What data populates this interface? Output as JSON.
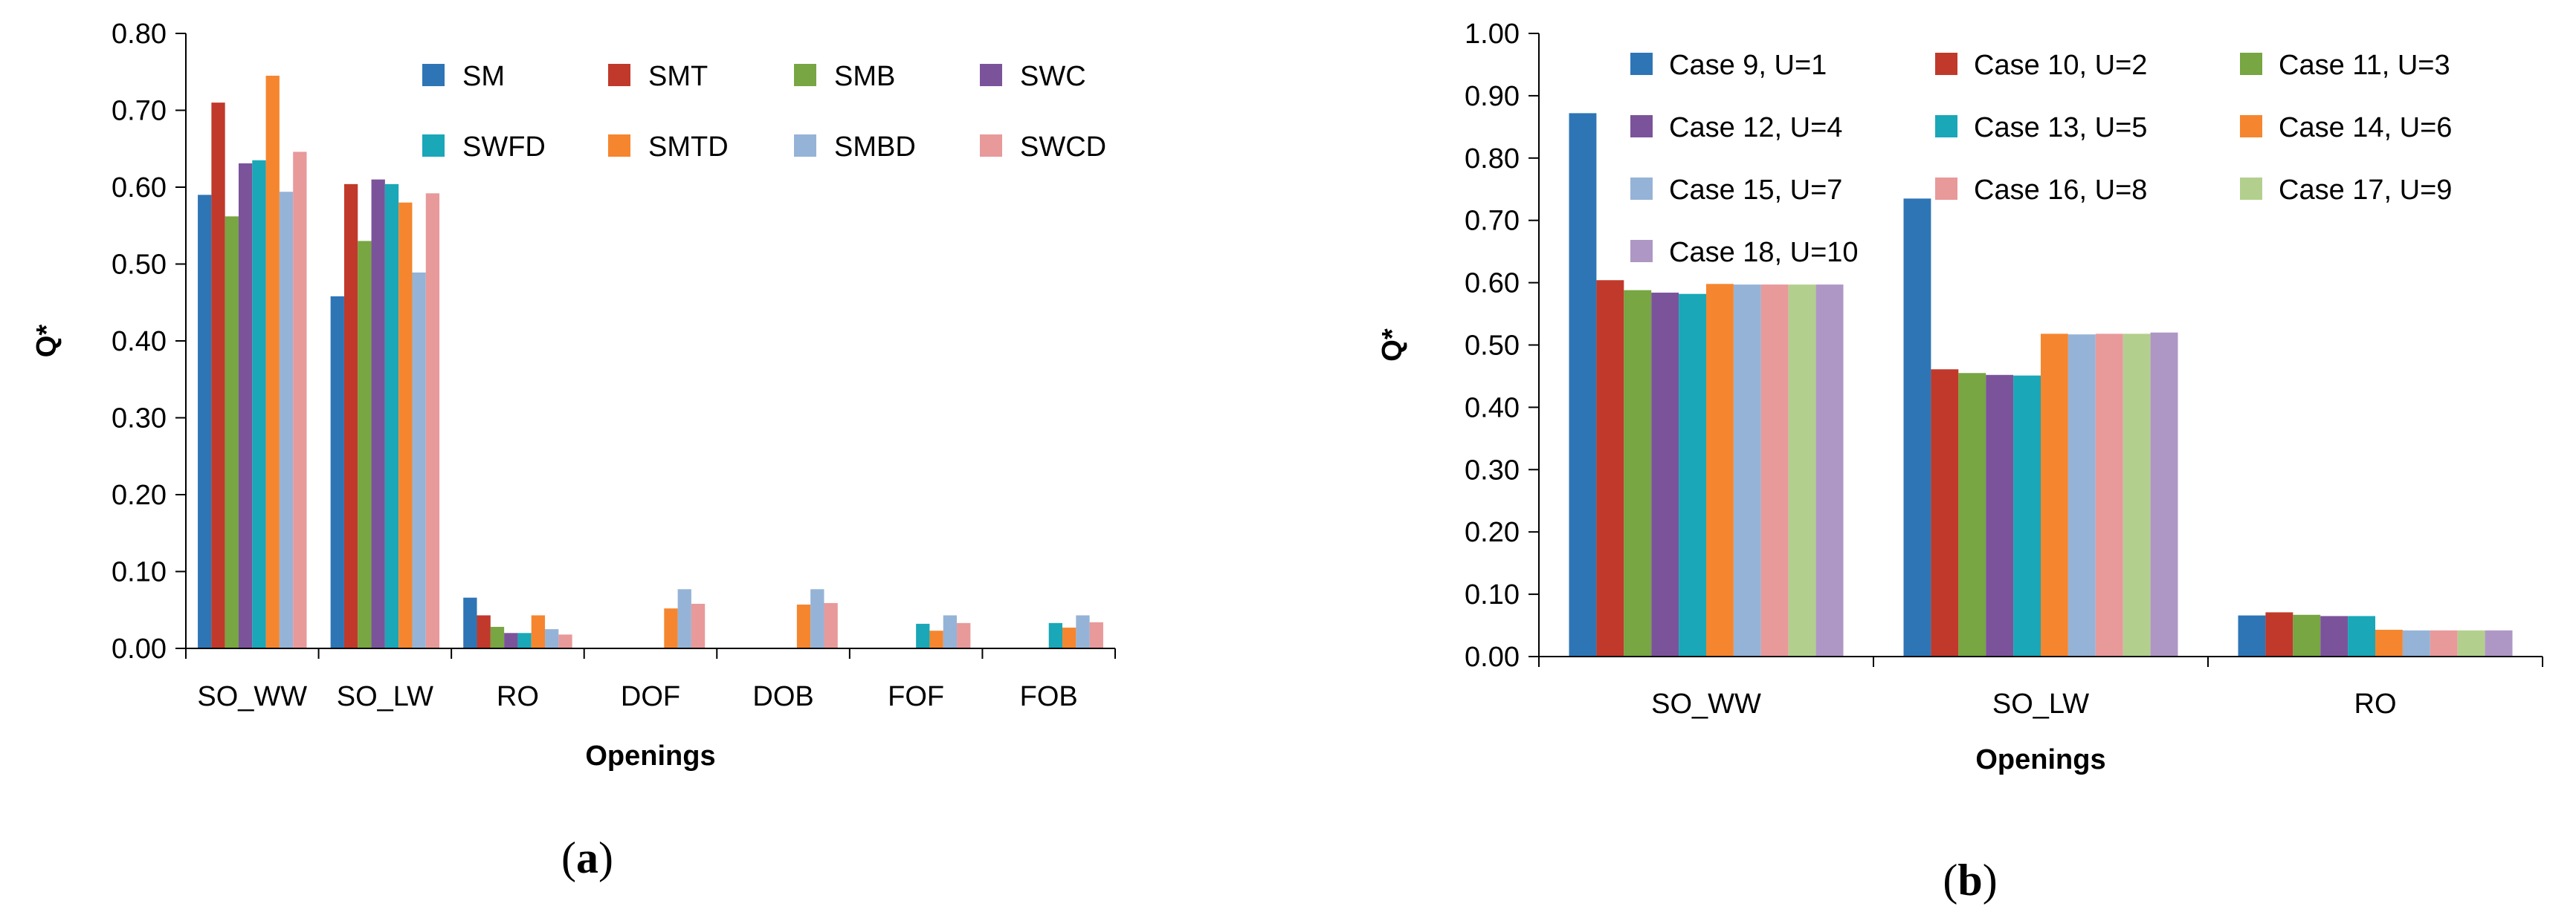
{
  "chart_data": [
    {
      "type": "bar",
      "panel_label": {
        "open": "(",
        "letter": "a",
        "close": ")"
      },
      "xlabel": "Openings",
      "ylabel": "Q*",
      "ylim": [
        0,
        0.8
      ],
      "yticks": [
        "0.00",
        "0.10",
        "0.20",
        "0.30",
        "0.40",
        "0.50",
        "0.60",
        "0.70",
        "0.80"
      ],
      "categories": [
        "SO_WW",
        "SO_LW",
        "RO",
        "DOF",
        "DOB",
        "FOF",
        "FOB"
      ],
      "legend_position": "top-right",
      "series": [
        {
          "name": "SM",
          "color": "#2E75B6",
          "values": [
            0.59,
            0.458,
            0.066,
            0,
            0,
            0,
            0
          ]
        },
        {
          "name": "SMT",
          "color": "#C0392B",
          "values": [
            0.71,
            0.604,
            0.043,
            0,
            0,
            0,
            0
          ]
        },
        {
          "name": "SMB",
          "color": "#77A642",
          "values": [
            0.562,
            0.53,
            0.028,
            0,
            0,
            0,
            0
          ]
        },
        {
          "name": "SWC",
          "color": "#7B539B",
          "values": [
            0.631,
            0.61,
            0.02,
            0,
            0,
            0,
            0
          ]
        },
        {
          "name": "SWFD",
          "color": "#1AA7B8",
          "values": [
            0.635,
            0.604,
            0.02,
            0,
            0,
            0.032,
            0.033
          ]
        },
        {
          "name": "SMTD",
          "color": "#F5862F",
          "values": [
            0.745,
            0.58,
            0.043,
            0.052,
            0.057,
            0.023,
            0.027
          ]
        },
        {
          "name": "SMBD",
          "color": "#95B3D7",
          "values": [
            0.594,
            0.489,
            0.025,
            0.077,
            0.077,
            0.043,
            0.043
          ]
        },
        {
          "name": "SWCD",
          "color": "#E8999A",
          "values": [
            0.646,
            0.592,
            0.018,
            0.058,
            0.059,
            0.033,
            0.034
          ]
        }
      ]
    },
    {
      "type": "bar",
      "panel_label": {
        "open": "(",
        "letter": "b",
        "close": ")"
      },
      "xlabel": "Openings",
      "ylabel": "Q*",
      "ylim": [
        0,
        1.0
      ],
      "yticks": [
        "0.00",
        "0.10",
        "0.20",
        "0.30",
        "0.40",
        "0.50",
        "0.60",
        "0.70",
        "0.80",
        "0.90",
        "1.00"
      ],
      "categories": [
        "SO_WW",
        "SO_LW",
        "RO"
      ],
      "legend_position": "top",
      "series": [
        {
          "name": "Case 9, U=1",
          "color": "#2E75B6",
          "values": [
            0.872,
            0.735,
            0.066
          ]
        },
        {
          "name": "Case 10, U=2",
          "color": "#C0392B",
          "values": [
            0.604,
            0.461,
            0.071
          ]
        },
        {
          "name": "Case 11, U=3",
          "color": "#77A642",
          "values": [
            0.588,
            0.455,
            0.067
          ]
        },
        {
          "name": "Case 12, U=4",
          "color": "#7B539B",
          "values": [
            0.584,
            0.452,
            0.065
          ]
        },
        {
          "name": "Case 13, U=5",
          "color": "#1AA7B8",
          "values": [
            0.582,
            0.451,
            0.065
          ]
        },
        {
          "name": "Case 14, U=6",
          "color": "#F5862F",
          "values": [
            0.598,
            0.518,
            0.043
          ]
        },
        {
          "name": "Case 15, U=7",
          "color": "#95B3D7",
          "values": [
            0.597,
            0.517,
            0.042
          ]
        },
        {
          "name": "Case 16, U=8",
          "color": "#E8999A",
          "values": [
            0.597,
            0.518,
            0.042
          ]
        },
        {
          "name": "Case 17, U=9",
          "color": "#B3CF8E",
          "values": [
            0.597,
            0.518,
            0.042
          ]
        },
        {
          "name": "Case 18, U=10",
          "color": "#AE97C4",
          "values": [
            0.597,
            0.52,
            0.042
          ]
        }
      ]
    }
  ]
}
